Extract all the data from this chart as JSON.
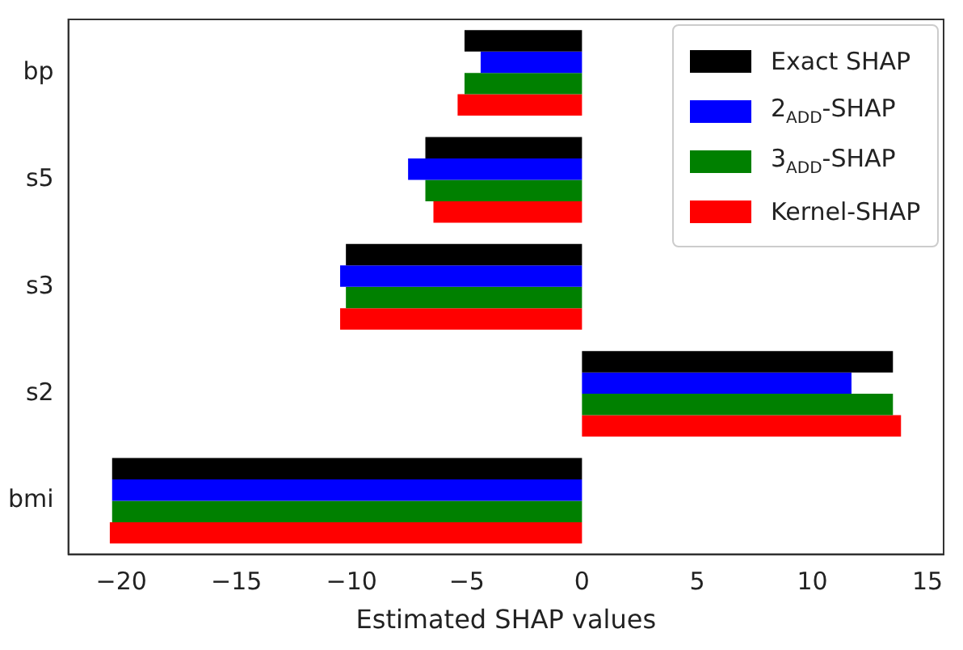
{
  "chart_data": {
    "type": "bar",
    "orientation": "horizontal",
    "xlabel": "Estimated SHAP values",
    "categories": [
      "bp",
      "s5",
      "s3",
      "s2",
      "bmi"
    ],
    "series": [
      {
        "name": "Exact SHAP",
        "color": "#000000",
        "values": [
          -5.1,
          -6.8,
          -10.25,
          13.5,
          -20.4
        ]
      },
      {
        "name": "2$_{ADD}$-SHAP",
        "color": "#0000ff",
        "values": [
          -4.4,
          -7.55,
          -10.5,
          11.7,
          -20.4
        ]
      },
      {
        "name": "3$_{ADD}$-SHAP",
        "color": "#008000",
        "values": [
          -5.1,
          -6.8,
          -10.25,
          13.5,
          -20.4
        ]
      },
      {
        "name": "Kernel-SHAP",
        "color": "#ff0000",
        "values": [
          -5.4,
          -6.45,
          -10.5,
          13.85,
          -20.5
        ]
      }
    ],
    "xlim": [
      -22.3,
      15.7
    ],
    "xticks": [
      -20,
      -15,
      -10,
      -5,
      0,
      5,
      10,
      15
    ],
    "grid": false,
    "legend": "top right"
  }
}
